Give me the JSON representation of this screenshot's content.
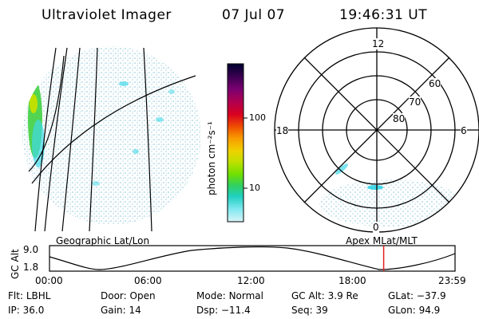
{
  "header": {
    "instrument": "Ultraviolet Imager",
    "date": "07 Jul 07",
    "time": "19:46:31 UT"
  },
  "colorbar": {
    "unit_label": "photon cm⁻²s⁻¹",
    "ticks": [
      "100",
      "10"
    ],
    "stops": [
      "#000030",
      "#3a0050",
      "#7a0070",
      "#b00050",
      "#d80020",
      "#f05000",
      "#f89a00",
      "#f0d000",
      "#c0e000",
      "#70e000",
      "#30d060",
      "#20d0c0",
      "#80e8f0",
      "#d8f4f8"
    ]
  },
  "polar_plot": {
    "mlt_labels": {
      "top": "12",
      "left": "18",
      "right": "6",
      "bottom": "0"
    },
    "lat_labels": [
      "60",
      "70",
      "80"
    ]
  },
  "timeline": {
    "left_label": "Geographic Lat/Lon",
    "right_label": "Apex MLat/MLT",
    "axis_title": "GC Alt",
    "y_ticks": [
      "9.0",
      "1.8"
    ],
    "x_ticks": [
      "00:00",
      "06:00",
      "12:00",
      "18:00",
      "23:59"
    ],
    "current_time_fraction": 0.824
  },
  "params": {
    "row1": [
      {
        "key": "Flt:",
        "value": "LBHL"
      },
      {
        "key": "Door:",
        "value": "Open"
      },
      {
        "key": "Mode:",
        "value": "Normal"
      },
      {
        "key": "GC Alt:",
        "value": "3.9 Re"
      },
      {
        "key": "GLat:",
        "value": "−37.9"
      }
    ],
    "row2": [
      {
        "key": "IP:",
        "value": "36.0"
      },
      {
        "key": "Gain:",
        "value": "14"
      },
      {
        "key": "Dsp:",
        "value": "−11.4"
      },
      {
        "key": "Seq:",
        "value": "39"
      },
      {
        "key": "GLon:",
        "value": "94.9"
      }
    ]
  },
  "colors": {
    "aurora_green": "#40d040",
    "cyan": "#40d8e8",
    "haze": "#c8e4ec",
    "marker_red": "#e02020"
  }
}
